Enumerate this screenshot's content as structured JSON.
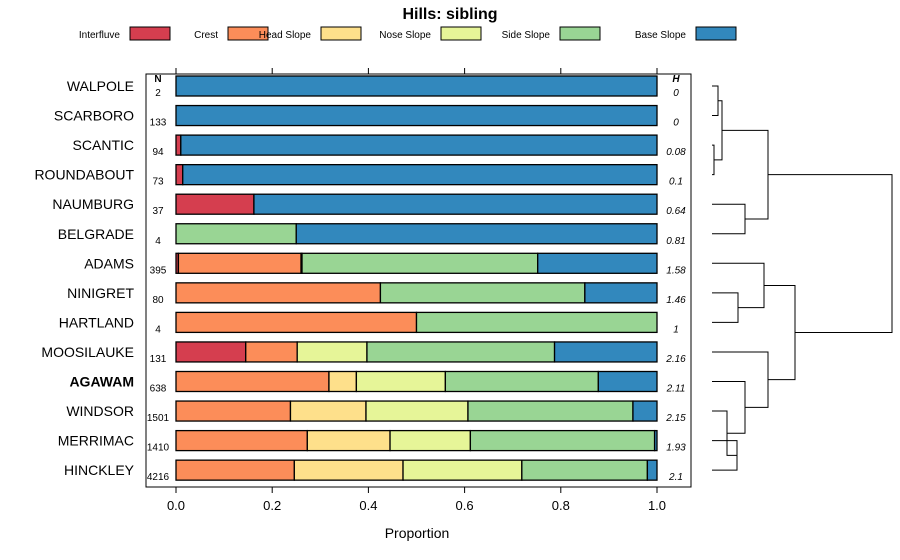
{
  "chart_data": {
    "type": "bar",
    "orientation": "horizontal",
    "stacked": true,
    "title": "Hills: sibling",
    "xlabel": "Proportion",
    "ylabel": "",
    "xlim": [
      0,
      1
    ],
    "xticks": [
      "0.0",
      "0.2",
      "0.4",
      "0.6",
      "0.8",
      "1.0"
    ],
    "n_header": "N",
    "h_header": "H",
    "legend_position": "top",
    "categories": [
      "WALPOLE",
      "SCARBORO",
      "SCANTIC",
      "ROUNDABOUT",
      "NAUMBURG",
      "BELGRADE",
      "ADAMS",
      "NINIGRET",
      "HARTLAND",
      "MOOSILAUKE",
      "AGAWAM",
      "WINDSOR",
      "MERRIMAC",
      "HINCKLEY"
    ],
    "bold_category": "AGAWAM",
    "n": [
      "2",
      "133",
      "94",
      "73",
      "37",
      "4",
      "395",
      "80",
      "4",
      "131",
      "638",
      "1501",
      "1410",
      "4216"
    ],
    "h": [
      "0",
      "0",
      "0.08",
      "0.1",
      "0.64",
      "0.81",
      "1.58",
      "1.46",
      "1",
      "2.16",
      "2.11",
      "2.15",
      "1.93",
      "2.1"
    ],
    "series": [
      {
        "name": "Interfluve",
        "color": "#D53E4F",
        "values": [
          0,
          0,
          0.01,
          0.014,
          0.162,
          0,
          0.005,
          0,
          0,
          0.145,
          0,
          0,
          0,
          0
        ]
      },
      {
        "name": "Crest",
        "color": "#FC8D59",
        "values": [
          0,
          0,
          0,
          0,
          0,
          0,
          0.255,
          0.425,
          0.5,
          0.107,
          0.318,
          0.238,
          0.273,
          0.246
        ]
      },
      {
        "name": "Head Slope",
        "color": "#FEE08B",
        "values": [
          0,
          0,
          0,
          0,
          0,
          0,
          0.002,
          0,
          0,
          0,
          0.057,
          0.157,
          0.172,
          0.226
        ]
      },
      {
        "name": "Nose Slope",
        "color": "#E6F598",
        "values": [
          0,
          0,
          0,
          0,
          0,
          0,
          0,
          0,
          0,
          0.145,
          0.185,
          0.212,
          0.167,
          0.247
        ]
      },
      {
        "name": "Side Slope",
        "color": "#99D594",
        "values": [
          0,
          0,
          0,
          0,
          0,
          0.25,
          0.49,
          0.425,
          0.5,
          0.39,
          0.318,
          0.343,
          0.383,
          0.261
        ]
      },
      {
        "name": "Base Slope",
        "color": "#3288BD",
        "values": [
          1,
          1,
          0.99,
          0.986,
          0.838,
          0.75,
          0.248,
          0.15,
          0,
          0.213,
          0.122,
          0.05,
          0.005,
          0.02
        ]
      }
    ]
  }
}
